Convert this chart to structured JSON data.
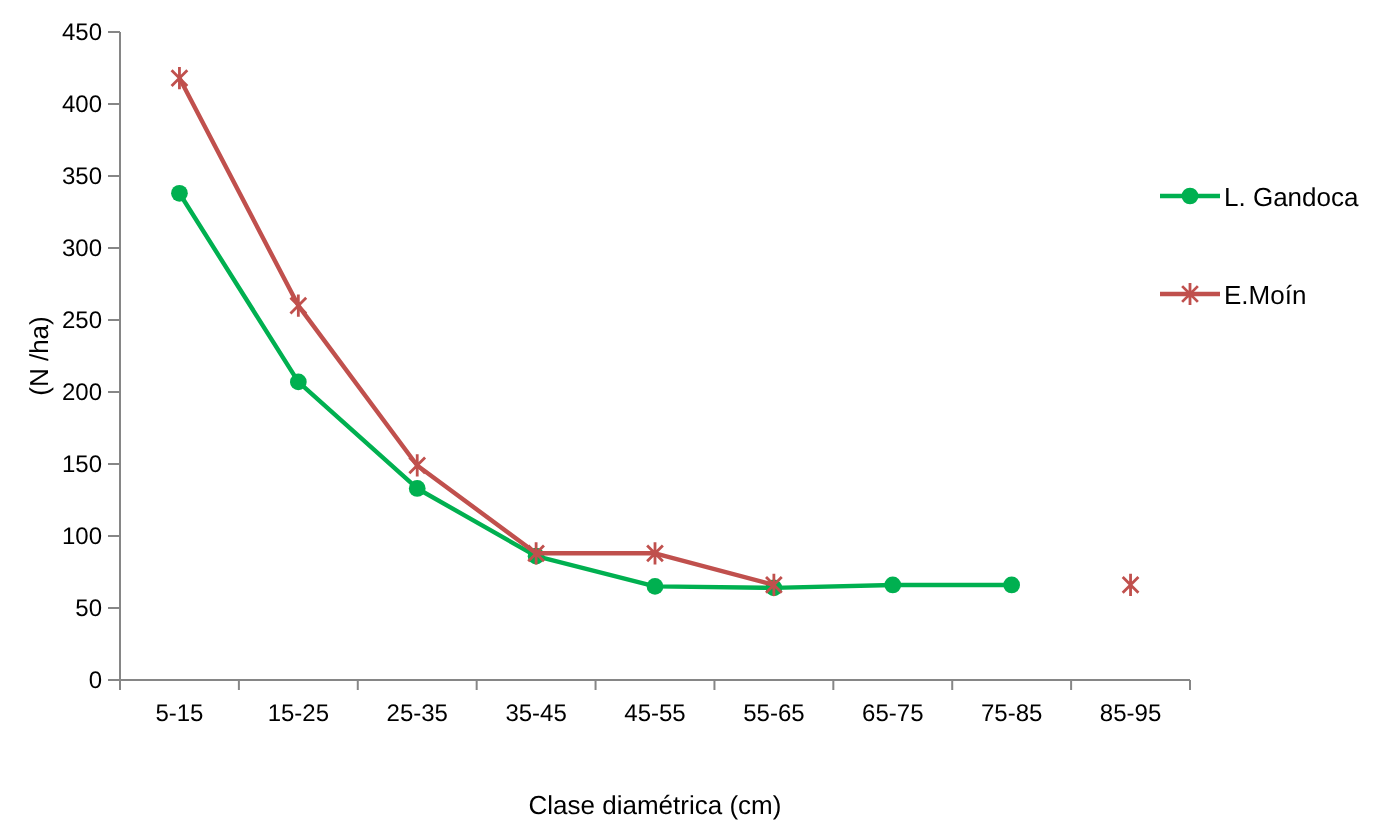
{
  "chart_data": {
    "type": "line",
    "xlabel": "Clase diamétrica (cm)",
    "ylabel": "(N /ha)",
    "categories": [
      "5-15",
      "15-25",
      "25-35",
      "35-45",
      "45-55",
      "55-65",
      "65-75",
      "75-85",
      "85-95"
    ],
    "series": [
      {
        "name": "L. Gandoca",
        "color": "#00b050",
        "marker": "circle",
        "values": [
          338,
          207,
          133,
          86,
          65,
          64,
          66,
          66,
          null
        ]
      },
      {
        "name": "E.Moín",
        "color": "#c0504d",
        "marker": "cross",
        "values": [
          418,
          260,
          149,
          88,
          88,
          66,
          null,
          null,
          66
        ]
      }
    ],
    "ylim": [
      0,
      450
    ],
    "yticks": [
      0,
      50,
      100,
      150,
      200,
      250,
      300,
      350,
      400,
      450
    ],
    "grid": false,
    "legend": "right",
    "line_style": "solid"
  }
}
